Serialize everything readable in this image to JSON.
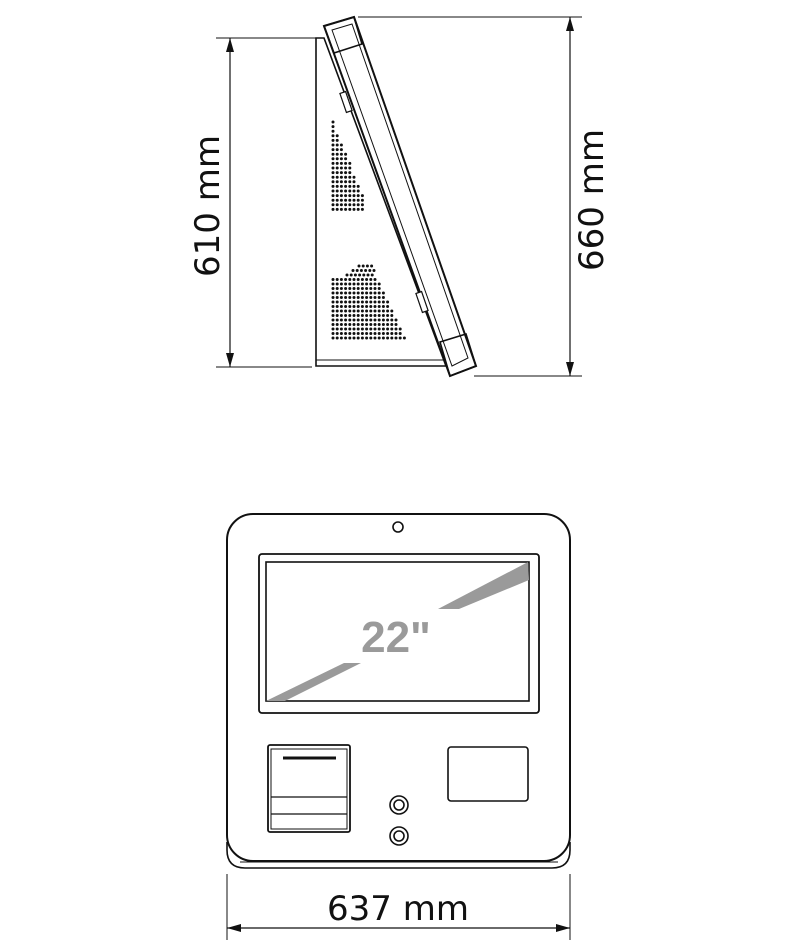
{
  "dimensions": {
    "side_height_rear": "610 mm",
    "side_height_total": "660 mm",
    "front_width": "637 mm"
  },
  "screen": {
    "size_label": "22\""
  },
  "colors": {
    "line": "#111111",
    "screen_label": "#9a9a9a",
    "diagonal_band": "#9a9a9a"
  }
}
